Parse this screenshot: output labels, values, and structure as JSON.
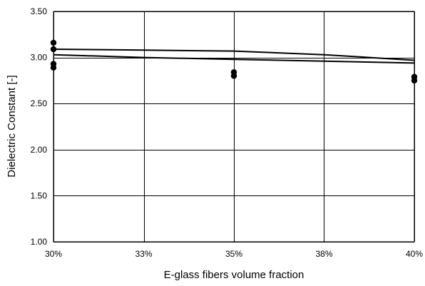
{
  "chart_data": {
    "type": "scatter",
    "title": "",
    "xlabel": "E-glass fibers volume fraction",
    "ylabel": "Dielectric Constant [-]",
    "xlim": [
      0.3,
      0.4
    ],
    "ylim": [
      1.0,
      3.5
    ],
    "x_ticks": [
      0.3,
      0.325,
      0.35,
      0.375,
      0.4
    ],
    "x_tick_labels": [
      "30%",
      "33%",
      "35%",
      "38%",
      "40%"
    ],
    "y_ticks": [
      1.0,
      1.5,
      2.0,
      2.5,
      3.0,
      3.5
    ],
    "y_tick_labels": [
      "1.00",
      "1.50",
      "2.00",
      "2.50",
      "3.00",
      "3.50"
    ],
    "grid": true,
    "legend": "none",
    "series": [
      {
        "kind": "markers",
        "x": [
          0.3,
          0.3,
          0.3,
          0.3,
          0.35,
          0.35,
          0.4,
          0.4
        ],
        "y": [
          3.16,
          3.09,
          2.93,
          2.89,
          2.84,
          2.8,
          2.79,
          2.75
        ]
      },
      {
        "kind": "line",
        "x": [
          0.3,
          0.325,
          0.35,
          0.375,
          0.4
        ],
        "y": [
          3.09,
          3.08,
          3.07,
          3.03,
          2.97
        ]
      },
      {
        "kind": "line",
        "x": [
          0.3,
          0.325,
          0.35,
          0.375,
          0.4
        ],
        "y": [
          3.03,
          3.0,
          2.98,
          2.96,
          2.94
        ]
      }
    ],
    "colors": {
      "marks": "#000000",
      "grid": "#000000",
      "background": "#ffffff"
    }
  }
}
